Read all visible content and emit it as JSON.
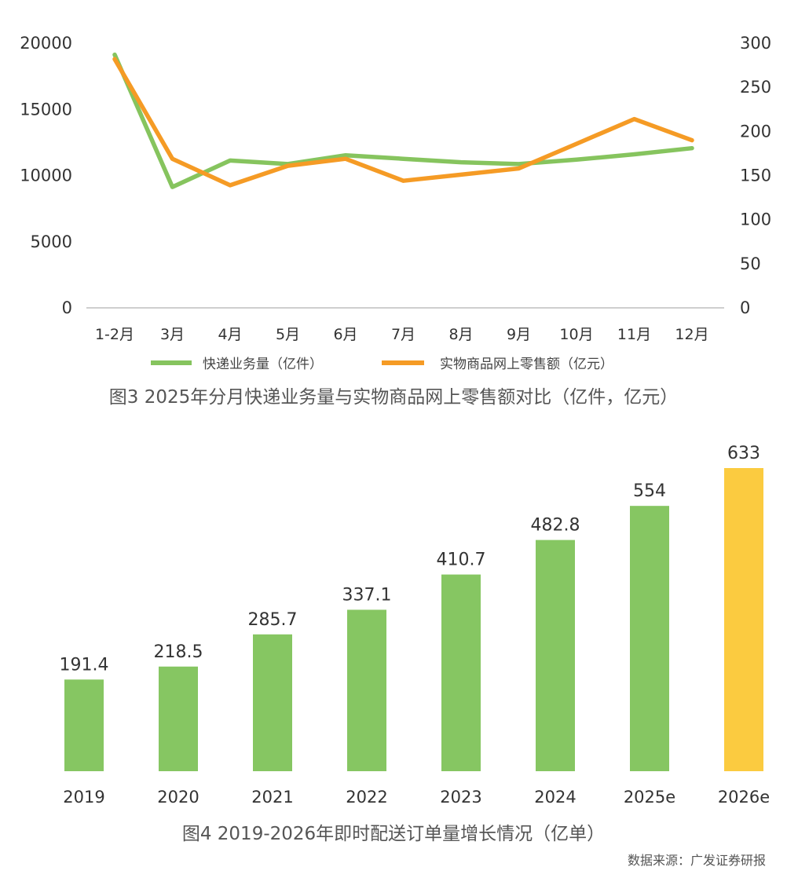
{
  "chart_data": [
    {
      "type": "line",
      "title": "图3 2025年分月快递业务量与实物商品网上零售额对比（亿件，亿元）",
      "categories": [
        "1-2月",
        "3月",
        "4月",
        "5月",
        "6月",
        "7月",
        "8月",
        "9月",
        "10月",
        "11月",
        "12月"
      ],
      "left_axis": {
        "ylim": [
          0,
          20000
        ],
        "ticks": [
          "20000",
          "15000",
          "10000",
          "5000",
          "0"
        ]
      },
      "right_axis": {
        "ylim": [
          0,
          300
        ],
        "ticks": [
          "300",
          "250",
          "200",
          "150",
          "100",
          "50",
          "0"
        ]
      },
      "series": [
        {
          "name": "快递业务量（亿件）",
          "axis": "right",
          "color": "#86C45E",
          "values": [
            287,
            137,
            167,
            163,
            173,
            169,
            165,
            163,
            168,
            174,
            181
          ]
        },
        {
          "name": "实物商品网上零售额（亿元）",
          "axis": "right",
          "color": "#F59B25",
          "values": [
            282,
            169,
            139,
            161,
            169,
            144,
            151,
            158,
            186,
            214,
            190
          ]
        }
      ]
    },
    {
      "type": "bar",
      "title": "图4 2019-2026年即时配送订单量增长情况（亿单）",
      "categories": [
        "2019",
        "2020",
        "2021",
        "2022",
        "2023",
        "2024",
        "2025e",
        "2026e"
      ],
      "values": [
        191.4,
        218.5,
        285.7,
        337.1,
        410.7,
        482.8,
        554,
        633
      ],
      "value_labels": [
        "191.4",
        "218.5",
        "285.7",
        "337.1",
        "410.7",
        "482.8",
        "554",
        "633"
      ],
      "colors": [
        "#86C662",
        "#86C662",
        "#86C662",
        "#86C662",
        "#86C662",
        "#86C662",
        "#86C662",
        "#FBCB40"
      ],
      "ylim": [
        0,
        633
      ]
    }
  ],
  "source": "数据来源：广发证券研报"
}
